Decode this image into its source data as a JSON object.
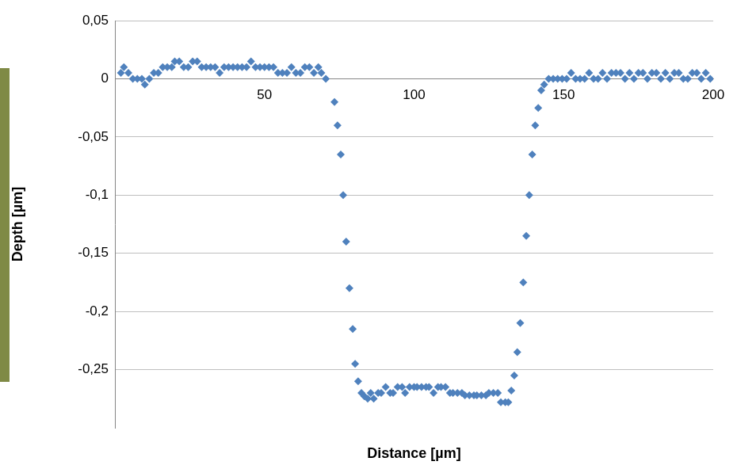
{
  "chart_data": {
    "type": "scatter",
    "x_label": "Distance [µm]",
    "y_label": "Depth [µm]",
    "marker": "diamond",
    "color": "#4f81bd",
    "grid": true,
    "xlim": [
      0,
      200
    ],
    "xticks": [
      50,
      100,
      150,
      200
    ],
    "ylim": [
      -0.3,
      0.05
    ],
    "yticks": [
      {
        "value": 0.05,
        "label": "0,05"
      },
      0,
      {
        "value": -0.05,
        "label": "-0,05"
      },
      {
        "value": -0.1,
        "label": "-0,1"
      },
      {
        "value": -0.15,
        "label": "-0,15"
      },
      {
        "value": -0.2,
        "label": "-0,2"
      },
      {
        "value": -0.25,
        "label": "-0,25"
      }
    ],
    "x": [
      2,
      3,
      4.5,
      6,
      7.5,
      9,
      10,
      11.5,
      13,
      14.5,
      16,
      17.5,
      19,
      20,
      21.5,
      23,
      24.5,
      26,
      27.5,
      29,
      30.5,
      32,
      33.5,
      35,
      36.5,
      38,
      39.5,
      41,
      42.5,
      44,
      45.5,
      47,
      48.5,
      50,
      51.5,
      53,
      54.5,
      56,
      57.5,
      59,
      60.5,
      62,
      63.5,
      65,
      66.5,
      68,
      69,
      70.5,
      73.4,
      74.4,
      75.5,
      76.3,
      77.3,
      78.4,
      79.5,
      80.3,
      81.3,
      82.4,
      83.4,
      84.5,
      85.5,
      86.5,
      88,
      89,
      90.5,
      92,
      93,
      94.5,
      96,
      97,
      98.5,
      100,
      101,
      102.5,
      104,
      105,
      106.5,
      108,
      109,
      110.5,
      112,
      113,
      114.5,
      116,
      117,
      118.5,
      120,
      121,
      122.5,
      124,
      125,
      126.5,
      128,
      129,
      130.5,
      131.5,
      132.5,
      133.5,
      134.5,
      135.5,
      136.5,
      137.5,
      138.5,
      139.5,
      140.5,
      141.5,
      142.5,
      143.5,
      145,
      146.5,
      148,
      149.5,
      151,
      152.5,
      154,
      155.5,
      157,
      158.5,
      160,
      161.5,
      163,
      164.5,
      166,
      167.5,
      169,
      170.5,
      172,
      173.5,
      175,
      176.5,
      178,
      179.5,
      181,
      182.5,
      184,
      185.5,
      187,
      188.5,
      190,
      191.5,
      193,
      194.5,
      196,
      197.5,
      199
    ],
    "values": [
      0.005,
      0.01,
      0.005,
      0,
      0,
      0,
      -0.005,
      0,
      0.005,
      0.005,
      0.01,
      0.01,
      0.01,
      0.015,
      0.015,
      0.01,
      0.01,
      0.015,
      0.015,
      0.01,
      0.01,
      0.01,
      0.01,
      0.005,
      0.01,
      0.01,
      0.01,
      0.01,
      0.01,
      0.01,
      0.015,
      0.01,
      0.01,
      0.01,
      0.01,
      0.01,
      0.005,
      0.005,
      0.005,
      0.01,
      0.005,
      0.005,
      0.01,
      0.01,
      0.005,
      0.01,
      0.005,
      0,
      -0.02,
      -0.04,
      -0.065,
      -0.1,
      -0.14,
      -0.18,
      -0.215,
      -0.245,
      -0.26,
      -0.27,
      -0.273,
      -0.275,
      -0.27,
      -0.275,
      -0.27,
      -0.27,
      -0.265,
      -0.27,
      -0.27,
      -0.265,
      -0.265,
      -0.27,
      -0.265,
      -0.265,
      -0.265,
      -0.265,
      -0.265,
      -0.265,
      -0.27,
      -0.265,
      -0.265,
      -0.265,
      -0.27,
      -0.27,
      -0.27,
      -0.27,
      -0.272,
      -0.272,
      -0.272,
      -0.272,
      -0.272,
      -0.272,
      -0.27,
      -0.27,
      -0.27,
      -0.278,
      -0.278,
      -0.278,
      -0.268,
      -0.255,
      -0.235,
      -0.21,
      -0.175,
      -0.135,
      -0.1,
      -0.065,
      -0.04,
      -0.025,
      -0.01,
      -0.005,
      0,
      0,
      0,
      0,
      0,
      0.005,
      0,
      0,
      0,
      0.005,
      0,
      0,
      0.005,
      0,
      0.005,
      0.005,
      0.005,
      0,
      0.005,
      0,
      0.005,
      0.005,
      0,
      0.005,
      0.005,
      0,
      0.005,
      0,
      0.005,
      0.005,
      0,
      0,
      0.005,
      0.005,
      0,
      0.005,
      0
    ]
  }
}
